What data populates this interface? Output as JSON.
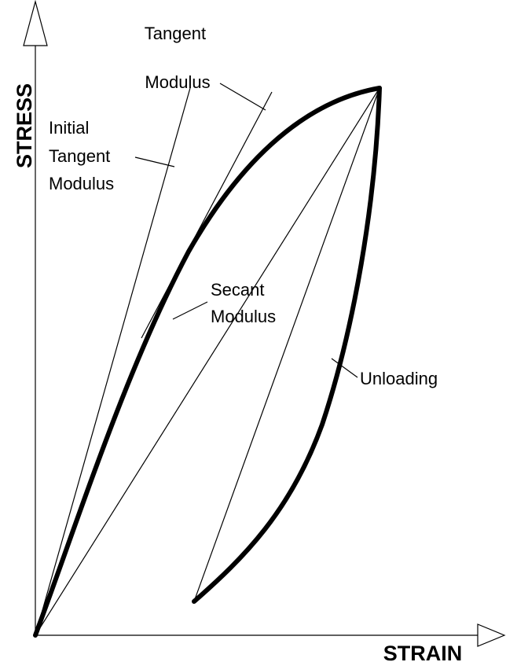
{
  "axes": {
    "y_label": "STRESS",
    "x_label": "STRAIN"
  },
  "labels": {
    "tangent_modulus": [
      "Tangent",
      "Modulus"
    ],
    "initial_tangent_modulus": [
      "Initial",
      "Tangent",
      "Modulus"
    ],
    "secant_modulus": [
      "Secant",
      "Modulus"
    ],
    "unloading": [
      "Unloading"
    ]
  }
}
